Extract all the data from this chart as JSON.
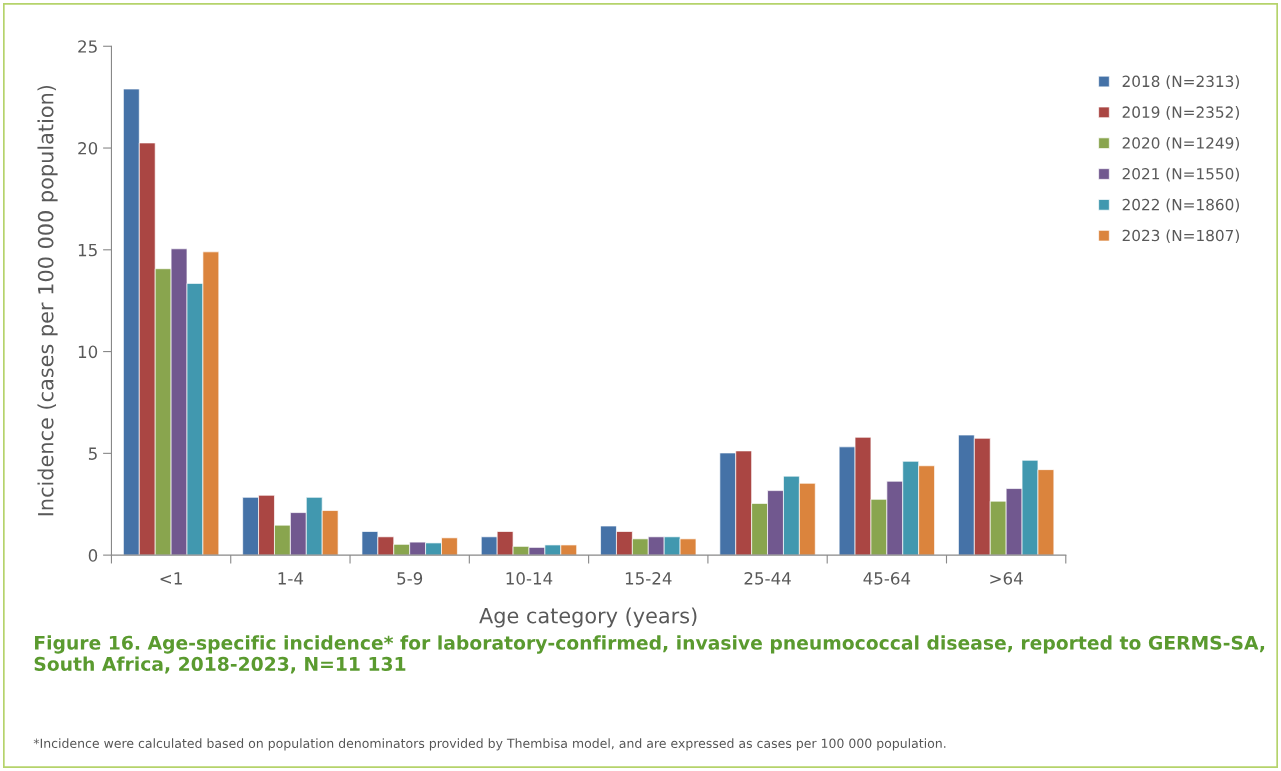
{
  "chart_data": {
    "type": "bar",
    "title": "Figure 16. Age-specific incidence* for laboratory-confirmed, invasive pneumococcal disease, reported to GERMS-SA, South Africa, 2018-2023, N=11 131",
    "xlabel": "Age category (years)",
    "ylabel": "Incidence (cases per 100 000 population)",
    "categories": [
      "<1",
      "1-4",
      "5-9",
      "10-14",
      "15-24",
      "25-44",
      "45-64",
      ">64"
    ],
    "series": [
      {
        "name": "2018 (N=2313)",
        "color": "#4572a7",
        "values": [
          22.9,
          2.84,
          1.16,
          0.9,
          1.43,
          5.02,
          5.32,
          5.9
        ]
      },
      {
        "name": "2019 (N=2352)",
        "color": "#aa4643",
        "values": [
          20.25,
          2.94,
          0.9,
          1.16,
          1.16,
          5.12,
          5.79,
          5.74
        ]
      },
      {
        "name": "2020 (N=1249)",
        "color": "#89a54e",
        "values": [
          14.07,
          1.47,
          0.53,
          0.43,
          0.8,
          2.54,
          2.74,
          2.65
        ]
      },
      {
        "name": "2021 (N=1550)",
        "color": "#71588f",
        "values": [
          15.05,
          2.09,
          0.64,
          0.38,
          0.9,
          3.17,
          3.63,
          3.27
        ]
      },
      {
        "name": "2022 (N=1860)",
        "color": "#4198af",
        "values": [
          13.35,
          2.84,
          0.6,
          0.5,
          0.9,
          3.88,
          4.61,
          4.66
        ]
      },
      {
        "name": "2023 (N=1807)",
        "color": "#db843d",
        "values": [
          14.9,
          2.19,
          0.85,
          0.5,
          0.8,
          3.53,
          4.39,
          4.2
        ]
      }
    ],
    "ylim": [
      0,
      25
    ],
    "yticks": [
      0,
      5,
      10,
      15,
      20,
      25
    ],
    "grid": false,
    "legend": "right",
    "annotations": [
      "*Incidence were calculated based on population denominators provided by Thembisa model, and are expressed as cases per 100 000 population."
    ]
  }
}
